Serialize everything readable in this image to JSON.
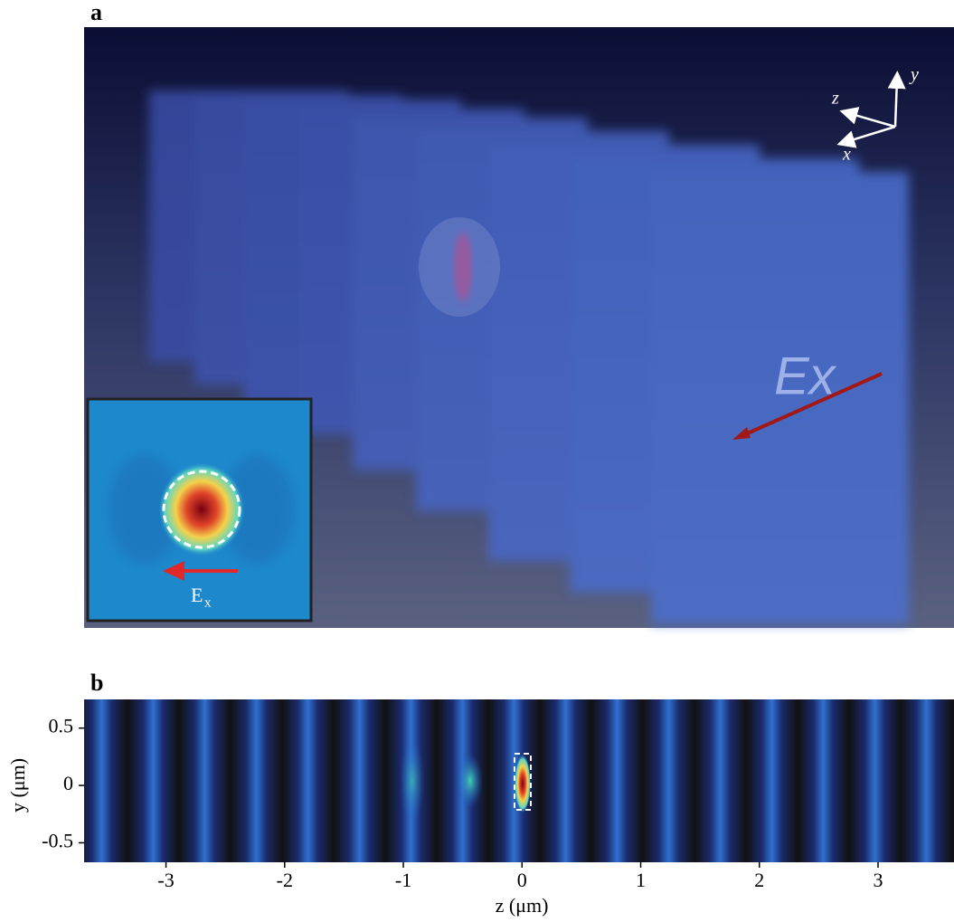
{
  "panel_a": {
    "label": "a",
    "axes": {
      "x": "x",
      "y": "y",
      "z": "z"
    },
    "field_label": "Ex",
    "inset": {
      "symbol": "E",
      "subscript": "x"
    }
  },
  "chart_data": {
    "type": "heatmap",
    "panel_label": "b",
    "xlabel": "z (μm)",
    "ylabel": "y (μm)",
    "xlim": [
      -3.69,
      3.64
    ],
    "ylim": [
      -0.67,
      0.75
    ],
    "xticks": [
      -3,
      -2,
      -1,
      0,
      1,
      2,
      3
    ],
    "yticks": [
      -0.5,
      0,
      0.5
    ]
  }
}
